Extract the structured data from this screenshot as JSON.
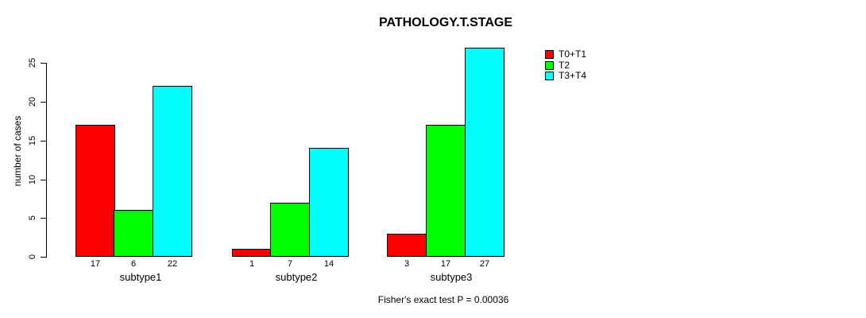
{
  "chart_data": {
    "type": "bar",
    "title": "PATHOLOGY.T.STAGE",
    "ylabel": "number of cases",
    "xlabel": "",
    "categories": [
      "subtype1",
      "subtype2",
      "subtype3"
    ],
    "series": [
      {
        "name": "T0+T1",
        "color": "#FF0000",
        "values": [
          17,
          1,
          3
        ]
      },
      {
        "name": "T2",
        "color": "#00FF00",
        "values": [
          6,
          7,
          17
        ]
      },
      {
        "name": "T3+T4",
        "color": "#00FFFF",
        "values": [
          22,
          14,
          27
        ]
      }
    ],
    "yticks": [
      0,
      5,
      10,
      15,
      20,
      25
    ],
    "ylim": [
      0,
      27
    ],
    "bar_value_labels": true,
    "grid": false,
    "legend_position": "top-right",
    "annotation": "Fisher's exact test P = 0.00036",
    "colors": {
      "bar_border": "#000000",
      "text": "#000000",
      "background": "#FFFFFF"
    }
  }
}
